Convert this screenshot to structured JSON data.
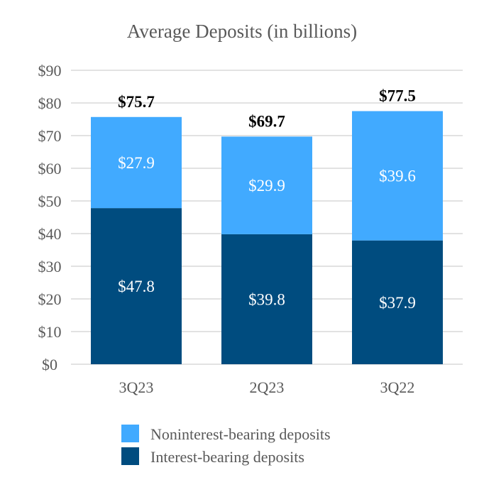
{
  "chart_data": {
    "type": "bar",
    "stacked": true,
    "title": "Average Deposits (in billions)",
    "categories": [
      "3Q23",
      "2Q23",
      "3Q22"
    ],
    "series": [
      {
        "name": "Interest-bearing deposits",
        "values": [
          47.8,
          39.8,
          37.9
        ],
        "labels": [
          "$47.8",
          "$39.8",
          "$37.9"
        ],
        "color": "#004c7f"
      },
      {
        "name": "Noninterest-bearing deposits",
        "values": [
          27.9,
          29.9,
          39.6
        ],
        "labels": [
          "$27.9",
          "$29.9",
          "$39.6"
        ],
        "color": "#41aaff"
      }
    ],
    "totals": [
      75.7,
      69.7,
      77.5
    ],
    "total_labels": [
      "$75.7",
      "$69.7",
      "$77.5"
    ],
    "ylim": [
      0,
      90
    ],
    "yticks": [
      0,
      10,
      20,
      30,
      40,
      50,
      60,
      70,
      80,
      90
    ],
    "ytick_labels": [
      "$0",
      "$10",
      "$20",
      "$30",
      "$40",
      "$50",
      "$60",
      "$70",
      "$80",
      "$90"
    ],
    "grid": true,
    "legend": {
      "position": "bottom",
      "entries": [
        "Noninterest-bearing deposits",
        "Interest-bearing deposits"
      ],
      "colors": [
        "#41aaff",
        "#004c7f"
      ]
    }
  }
}
